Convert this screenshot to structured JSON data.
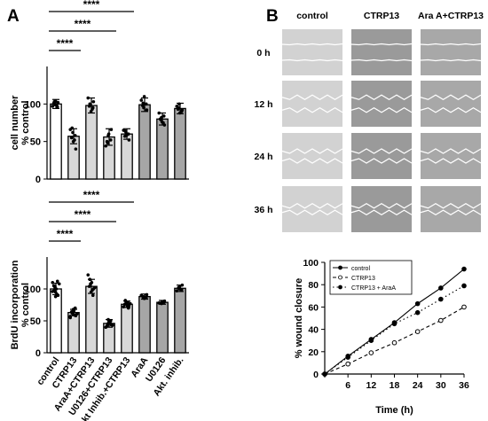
{
  "panels": {
    "a": "A",
    "b": "B"
  },
  "chart_data": [
    {
      "type": "bar",
      "panel": "A-top",
      "ylabel": "cell number\n% control",
      "ylim": [
        0,
        150
      ],
      "yticks": [
        0,
        50,
        100
      ],
      "categories": [
        "control",
        "CTRP13",
        "AraA+CTRP13",
        "U0126+CTRP13",
        "Akt Inhib.+CTRP13",
        "AraA",
        "U0126",
        "Akt. inhib."
      ],
      "values": [
        100,
        57,
        98,
        56,
        60,
        99,
        80,
        94
      ],
      "errors": [
        6,
        10,
        10,
        11,
        7,
        9,
        8,
        7
      ],
      "bar_colors": [
        "#ffffff",
        "#d8d8d8",
        "#d8d8d8",
        "#d8d8d8",
        "#d8d8d8",
        "#a6a6a6",
        "#a6a6a6",
        "#a6a6a6"
      ],
      "points": [
        [
          97,
          104,
          99,
          102,
          96,
          103,
          101,
          98
        ],
        [
          66,
          50,
          62,
          40,
          58,
          68,
          55,
          52
        ],
        [
          108,
          90,
          99,
          103,
          95,
          100,
          97,
          93
        ],
        [
          44,
          60,
          58,
          66,
          52,
          48,
          50
        ],
        [
          65,
          58,
          62,
          52,
          60,
          64,
          57
        ],
        [
          105,
          110,
          95,
          92,
          100,
          101,
          98
        ],
        [
          88,
          76,
          82,
          72,
          84,
          79,
          80,
          75
        ],
        [
          97,
          88,
          100,
          92,
          90,
          95,
          93
        ]
      ],
      "significance": [
        {
          "from": 0,
          "to": 1,
          "label": "****"
        },
        {
          "from": 0,
          "to": 3,
          "label": "****"
        },
        {
          "from": 0,
          "to": 4,
          "label": "****"
        }
      ]
    },
    {
      "type": "bar",
      "panel": "A-bottom",
      "ylabel": "BrdU incorporation\n% control",
      "ylim": [
        0,
        150
      ],
      "yticks": [
        0,
        50,
        100
      ],
      "categories": [
        "control",
        "CTRP13",
        "AraA+CTRP13",
        "U0126+CTRP13",
        "Akt Inhib.+CTRP13",
        "AraA",
        "U0126",
        "Akt. inhib."
      ],
      "values": [
        100,
        63,
        104,
        46,
        76,
        88,
        79,
        101
      ],
      "errors": [
        9,
        5,
        11,
        6,
        5,
        4,
        3,
        5
      ],
      "bar_colors": [
        "#ffffff",
        "#d8d8d8",
        "#d8d8d8",
        "#d8d8d8",
        "#d8d8d8",
        "#a6a6a6",
        "#a6a6a6",
        "#a6a6a6"
      ],
      "points": [
        [
          110,
          95,
          102,
          90,
          112,
          98,
          105,
          92,
          100,
          108,
          96,
          88,
          104
        ],
        [
          55,
          60,
          65,
          58,
          70,
          62,
          64,
          59,
          66,
          61,
          57,
          68
        ],
        [
          122,
          95,
          108,
          100,
          90,
          115,
          104,
          98,
          110,
          102
        ],
        [
          40,
          48,
          52,
          44,
          50,
          45,
          42,
          47,
          49,
          43
        ],
        [
          72,
          78,
          80,
          74,
          70,
          82,
          76,
          79,
          73,
          77
        ],
        [
          90,
          85,
          88,
          91,
          86,
          87
        ],
        [
          78,
          80,
          77,
          81,
          79
        ],
        [
          97,
          104,
          100,
          106,
          99,
          102
        ]
      ],
      "significance": [
        {
          "from": 0,
          "to": 1,
          "label": "****"
        },
        {
          "from": 0,
          "to": 3,
          "label": "****"
        },
        {
          "from": 0,
          "to": 4,
          "label": "****"
        }
      ]
    },
    {
      "type": "line",
      "panel": "B-bottom",
      "xlabel": "Time (h)",
      "ylabel": "% wound closure",
      "xlim": [
        0,
        36
      ],
      "ylim": [
        0,
        100
      ],
      "xticks": [
        0,
        6,
        12,
        18,
        24,
        30,
        36
      ],
      "xticklabels": [
        "",
        "6",
        "12",
        "18",
        "24",
        "30",
        "36"
      ],
      "yticks": [
        0,
        20,
        40,
        60,
        80,
        100
      ],
      "legend_position": "top-left",
      "series": [
        {
          "name": "control",
          "style": "solid",
          "marker": "filled",
          "x": [
            0,
            6,
            12,
            18,
            24,
            30,
            36
          ],
          "y": [
            0,
            16,
            31,
            46,
            63,
            77,
            94
          ]
        },
        {
          "name": "CTRP13",
          "style": "dashed",
          "marker": "open",
          "x": [
            0,
            6,
            12,
            18,
            24,
            30,
            36
          ],
          "y": [
            0,
            9,
            19,
            28,
            38,
            48,
            60
          ]
        },
        {
          "name": "CTRP13 + AraA",
          "style": "dashdot",
          "marker": "filled",
          "x": [
            0,
            6,
            12,
            18,
            24,
            30,
            36
          ],
          "y": [
            0,
            15,
            30,
            45,
            55,
            67,
            79
          ]
        }
      ]
    }
  ],
  "micrographs": {
    "columns": [
      "control",
      "CTRP13",
      "Ara A+CTRP13"
    ],
    "rows": [
      "0 h",
      "12 h",
      "24 h",
      "36 h"
    ]
  }
}
